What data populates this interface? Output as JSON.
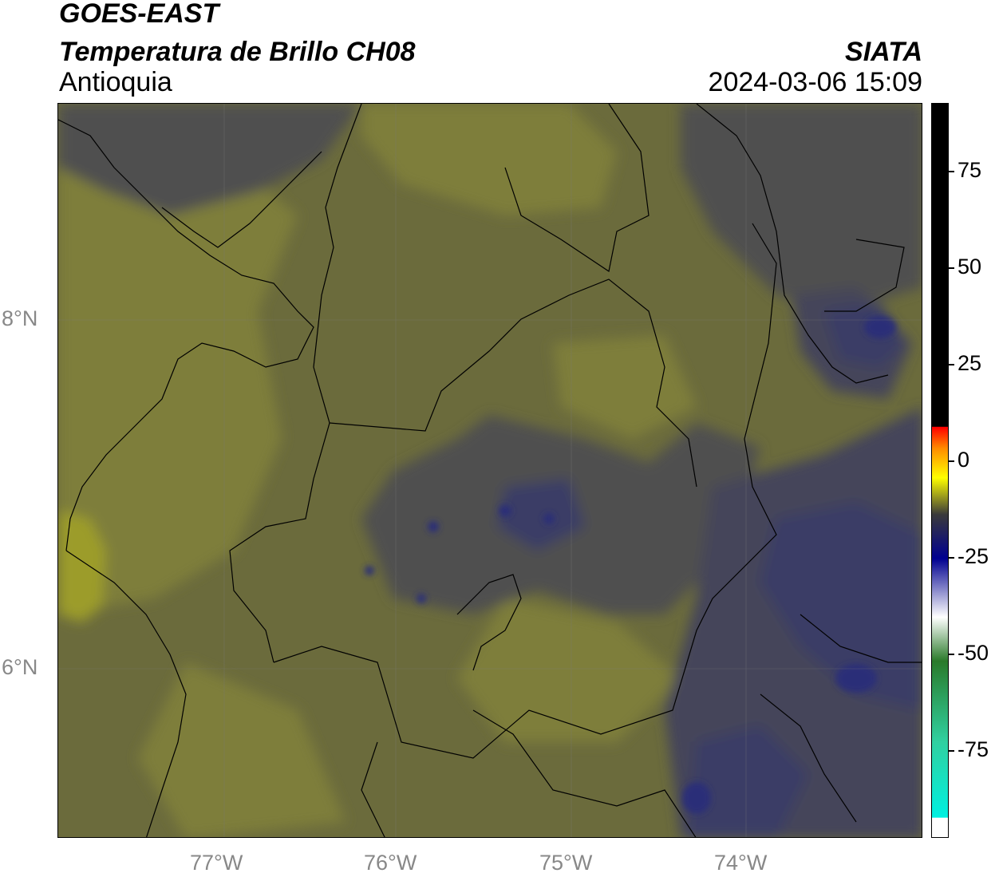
{
  "header": {
    "satellite": "GOES-EAST",
    "product": "Temperatura de Brillo CH08",
    "brand": "SIATA",
    "region": "Antioquia",
    "datetime": "2024-03-06 15:09"
  },
  "axes": {
    "x_ticks": [
      "77°W",
      "76°W",
      "75°W",
      "74°W"
    ],
    "y_ticks": [
      "8°N",
      "6°N"
    ]
  },
  "colorbar": {
    "ticks": [
      "75",
      "50",
      "25",
      "0",
      "-25",
      "-50",
      "-75"
    ],
    "stops": [
      {
        "offset": 0.0,
        "color": "#000000"
      },
      {
        "offset": 0.44,
        "color": "#000000"
      },
      {
        "offset": 0.441,
        "color": "#ff0000"
      },
      {
        "offset": 0.47,
        "color": "#ff8c00"
      },
      {
        "offset": 0.51,
        "color": "#ffff00"
      },
      {
        "offset": 0.56,
        "color": "#3a3a3a"
      },
      {
        "offset": 0.62,
        "color": "#000090"
      },
      {
        "offset": 0.7,
        "color": "#ffffff"
      },
      {
        "offset": 0.76,
        "color": "#2a7a2a"
      },
      {
        "offset": 0.87,
        "color": "#30d0a0"
      },
      {
        "offset": 0.973,
        "color": "#00f0e0"
      },
      {
        "offset": 0.974,
        "color": "#ffffff"
      },
      {
        "offset": 1.0,
        "color": "#ffffff"
      }
    ]
  },
  "map_colors": {
    "base": "#6b6b3c",
    "light_olive": "#7e7e3a",
    "bright_olive": "#9c9c2a",
    "dark_gray": "#505050",
    "cold_gray": "#45455a",
    "cold_blue": "#3b3e66",
    "coldest_blue": "#2c2f78"
  }
}
